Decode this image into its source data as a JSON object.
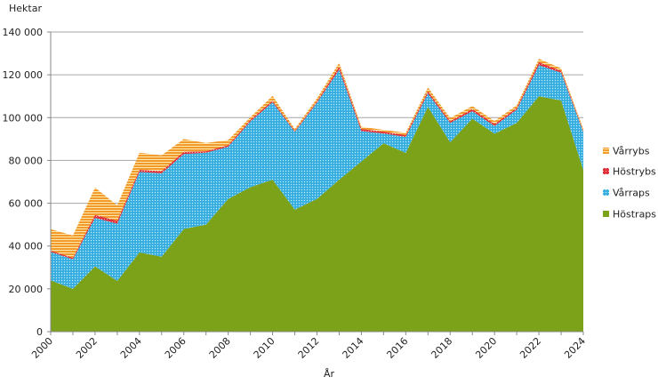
{
  "chart_data": {
    "type": "area",
    "stacked": true,
    "title": "",
    "ylabel": "Hektar",
    "xlabel": "År",
    "ylim": [
      0,
      140000
    ],
    "yticks": [
      0,
      20000,
      40000,
      60000,
      80000,
      100000,
      120000,
      140000
    ],
    "ytick_labels": [
      "0",
      "20 000",
      "40 000",
      "60 000",
      "80 000",
      "100 000",
      "120 000",
      "140 000"
    ],
    "x": [
      2000,
      2001,
      2002,
      2003,
      2004,
      2005,
      2006,
      2007,
      2008,
      2009,
      2010,
      2011,
      2012,
      2013,
      2014,
      2015,
      2016,
      2017,
      2018,
      2019,
      2020,
      2021,
      2022,
      2023,
      2024
    ],
    "xtick_labels": [
      "2000",
      "2002",
      "2004",
      "2006",
      "2008",
      "2010",
      "2012",
      "2014",
      "2016",
      "2018",
      "2020",
      "2022",
      "2024"
    ],
    "grid": true,
    "legend_position": "right",
    "series": [
      {
        "name": "Höstraps",
        "color": "#7ba219",
        "values": [
          24000,
          20000,
          30500,
          23700,
          37000,
          35000,
          48000,
          50000,
          62000,
          67500,
          71000,
          57000,
          62000,
          71000,
          79500,
          88000,
          83500,
          105000,
          88500,
          99500,
          92500,
          97500,
          110000,
          108000,
          75500
        ]
      },
      {
        "name": "Vårraps",
        "color": "#41b6e6",
        "values": [
          13300,
          13800,
          22700,
          26700,
          37600,
          39000,
          35000,
          33600,
          24400,
          30700,
          36200,
          36300,
          45000,
          51400,
          14200,
          4600,
          7500,
          6300,
          9000,
          3500,
          3600,
          6200,
          14500,
          13000,
          17800
        ]
      },
      {
        "name": "Höstrybs",
        "color": "#e0303a",
        "values": [
          600,
          700,
          1300,
          1400,
          1000,
          1000,
          1000,
          700,
          700,
          800,
          700,
          500,
          600,
          1400,
          1000,
          800,
          800,
          1000,
          800,
          1000,
          900,
          800,
          1400,
          900,
          500
        ]
      },
      {
        "name": "Vårrybs",
        "color": "#f39a2c",
        "values": [
          10000,
          10400,
          12800,
          7200,
          8000,
          7400,
          6000,
          3800,
          2400,
          1200,
          2300,
          900,
          1400,
          1800,
          1000,
          900,
          1100,
          1800,
          1500,
          1400,
          1400,
          1300,
          1600,
          1100,
          900
        ]
      }
    ]
  }
}
